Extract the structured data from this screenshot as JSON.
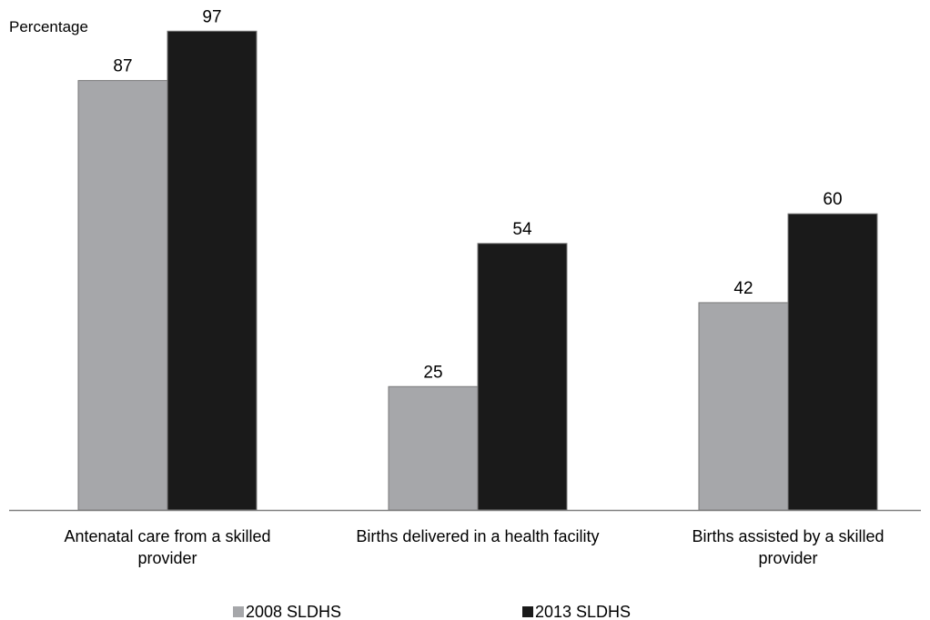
{
  "chart_data": {
    "type": "bar",
    "ylabel": "Percentage",
    "categories": [
      [
        "Antenatal care from a skilled",
        "provider"
      ],
      [
        "Births delivered in a health facility"
      ],
      [
        "Births assisted by a skilled",
        "provider"
      ]
    ],
    "series": [
      {
        "name": "2008 SLDHS",
        "values": [
          87,
          25,
          42
        ],
        "color": "#a6a7aa"
      },
      {
        "name": "2013 SLDHS",
        "values": [
          97,
          54,
          60
        ],
        "color": "#1a1a1a"
      }
    ],
    "ylim": [
      0,
      100
    ],
    "grid": false,
    "legend_position": "bottom",
    "axis_color": "#808080"
  }
}
